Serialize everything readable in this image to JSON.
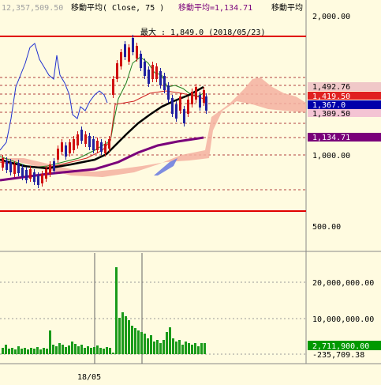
{
  "header": {
    "top_partial_text": "12,357,509.50",
    "ma_label_1": "移動平均( Close, 75 )",
    "ma_label_2": "移動平均=1,134.71",
    "ma_label_3": "移動平均"
  },
  "annotation": {
    "high_note": "最大 : 1,849.0 (2018/05/23)"
  },
  "price_axis": {
    "ticks": [
      "2,000.00",
      "1,000.00",
      "500.00"
    ]
  },
  "price_badges": [
    {
      "text": "1,492.76",
      "bg": "#f0c8c8",
      "fg": "#000000"
    },
    {
      "text": "1,419.50",
      "bg": "#e02020",
      "fg": "#ffffff"
    },
    {
      "text": "1,367.0",
      "bg": "#0000aa",
      "fg": "#ffffff"
    },
    {
      "text": "1,309.50",
      "bg": "#f4c4d4",
      "fg": "#000000"
    },
    {
      "text": "1,134.71",
      "bg": "#7a007a",
      "fg": "#ffffff"
    }
  ],
  "volume_axis": {
    "ticks": [
      "20,000,000.00",
      "10,000,000.00"
    ]
  },
  "volume_badges": [
    {
      "text": "2,711,900.00",
      "bg": "#009900",
      "fg": "#ffffff"
    },
    {
      "text": "-235,709.38",
      "bg": "#fffbe0",
      "fg": "#000000"
    }
  ],
  "date_axis": {
    "labels": [
      "18/05"
    ]
  },
  "colors": {
    "background": "#fffbe0",
    "up_candle": "#d01010",
    "down_candle": "#2020a0",
    "ma75": "#7a007a",
    "ma_black": "#000000",
    "cloud": "#f4b0a0",
    "cloud_blue": "#7080e0",
    "volume": "#1a9a1a",
    "resistance": "#e00000"
  }
}
